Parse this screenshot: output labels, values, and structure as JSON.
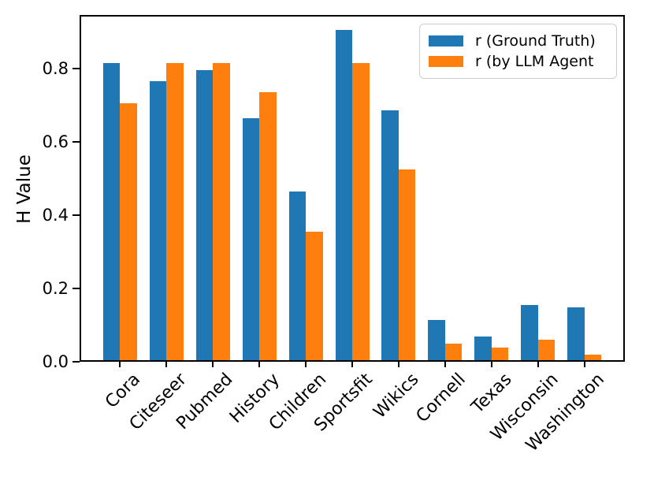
{
  "chart_data": {
    "type": "bar",
    "title": "",
    "xlabel": "",
    "ylabel": "H Value",
    "categories": [
      "Cora",
      "Citeseer",
      "Pubmed",
      "History",
      "Children",
      "Sportsfit",
      "Wikics",
      "Cornell",
      "Texas",
      "Wisconsin",
      "Washington"
    ],
    "series": [
      {
        "name": "r (Ground Truth)",
        "color": "#1f77b4",
        "values": [
          0.81,
          0.76,
          0.79,
          0.66,
          0.46,
          0.9,
          0.68,
          0.11,
          0.065,
          0.15,
          0.145
        ]
      },
      {
        "name": "r (by LLM Agent",
        "color": "#ff7f0e",
        "values": [
          0.7,
          0.81,
          0.81,
          0.73,
          0.35,
          0.81,
          0.52,
          0.045,
          0.035,
          0.055,
          0.015
        ]
      }
    ],
    "yticks": [
      0.0,
      0.2,
      0.4,
      0.6,
      0.8
    ],
    "ylim": [
      0,
      0.945
    ],
    "xtick_rotation": 45,
    "grid": false,
    "legend_position": "upper right",
    "axis_color": "#000000",
    "background_color": "#ffffff"
  }
}
